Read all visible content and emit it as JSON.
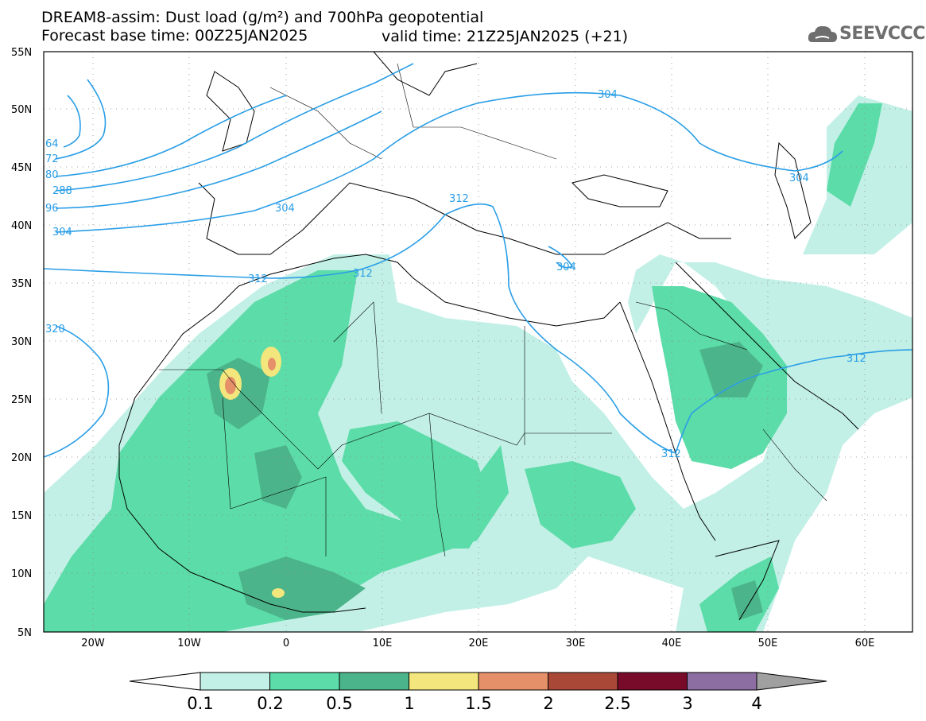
{
  "title": {
    "line1": "DREAM8-assim: Dust load (g/m²) and 700hPa geopotential",
    "line2_left": "Forecast base time: 00Z25JAN2025",
    "line2_right": "valid time: 21Z25JAN2025 (+21)"
  },
  "logo": {
    "text": "SEEVCCC",
    "icon": "cloud-logo-icon"
  },
  "axes": {
    "lat_labels": [
      "55N",
      "50N",
      "45N",
      "40N",
      "35N",
      "30N",
      "25N",
      "20N",
      "15N",
      "10N",
      "5N"
    ],
    "lon_labels": [
      "20W",
      "10W",
      "0",
      "10E",
      "20E",
      "30E",
      "40E",
      "50E",
      "60E"
    ]
  },
  "contour_labels": [
    "64",
    "72",
    "80",
    "288",
    "96",
    "304",
    "304",
    "304",
    "312",
    "312",
    "312",
    "320",
    "304",
    "304",
    "312",
    "312"
  ],
  "colorbar": {
    "ticks": [
      "0.1",
      "0.2",
      "0.5",
      "1",
      "1.5",
      "2",
      "2.5",
      "3",
      "4"
    ],
    "colors": [
      "#c2f0e6",
      "#5cdca8",
      "#4cb48a",
      "#f2e67c",
      "#e6906a",
      "#aa4838",
      "#780a2a",
      "#8c6ea2"
    ]
  },
  "colors": {
    "dust_light": "#c2f0e6",
    "dust_mid": "#5cdca8",
    "dust_dark": "#4cb48a",
    "dust_yellow": "#f2e67c",
    "dust_orange": "#e6906a",
    "contour": "#2a9ee6"
  }
}
